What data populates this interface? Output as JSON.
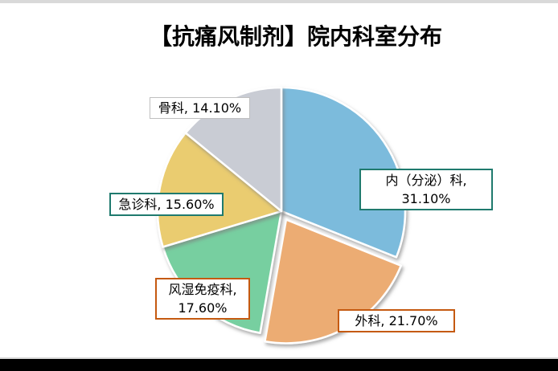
{
  "page": {
    "title": "【抗痛风制剂】院内科室分布"
  },
  "chart_data": {
    "type": "pie",
    "title": "【抗痛风制剂】院内科室分布",
    "start_angle_deg": 0,
    "direction": "clockwise",
    "slices": [
      {
        "key": "nei-fen-mi-ke",
        "label": "内（分泌）科",
        "value": 31.1,
        "pct_label": "31.10%",
        "color": "#7cbbdc",
        "exploded": false
      },
      {
        "key": "wai-ke",
        "label": "外科",
        "value": 21.7,
        "pct_label": "21.70%",
        "color": "#ecac73",
        "exploded": true
      },
      {
        "key": "feng-shi-mian-yi-ke",
        "label": "风湿免疫科",
        "value": 17.6,
        "pct_label": "17.60%",
        "color": "#77cfa0",
        "exploded": false
      },
      {
        "key": "ji-zhen-ke",
        "label": "急诊科",
        "value": 15.6,
        "pct_label": "15.60%",
        "color": "#eacc70",
        "exploded": false
      },
      {
        "key": "gu-ke",
        "label": "骨科",
        "value": 14.1,
        "pct_label": "14.10%",
        "color": "#c9ccd4",
        "exploded": false
      }
    ]
  },
  "callouts": [
    {
      "line1": "内（分泌）科,",
      "line2": "31.10%",
      "border_color": "#1f7a6e"
    },
    {
      "line1": "外科, 21.70%",
      "line2": "",
      "border_color": "#c55a11"
    },
    {
      "line1": "风湿免疫科,",
      "line2": "17.60%",
      "border_color": "#c55a11"
    },
    {
      "line1": "急诊科, 15.60%",
      "line2": "",
      "border_color": "#1f7a6e"
    },
    {
      "line1": "骨科, 14.10%",
      "line2": "",
      "border_color": "#bfbfbf"
    }
  ],
  "colors": {
    "top_strip": "#d9d9d9",
    "bottom_bar": "#000000",
    "background": "#ffffff"
  }
}
